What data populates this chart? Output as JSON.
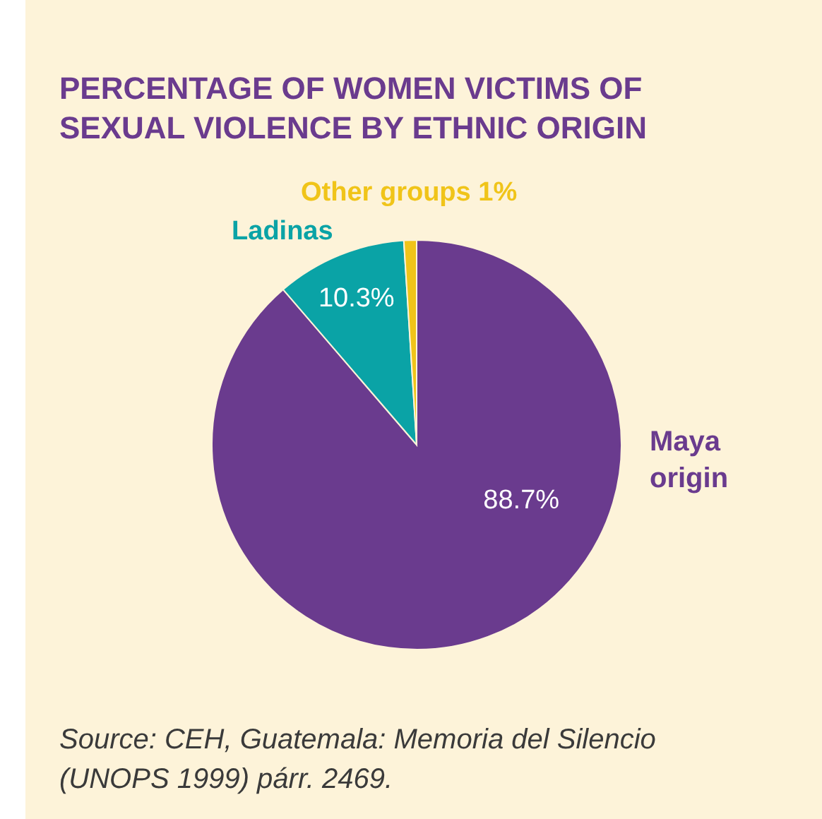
{
  "chart_data": {
    "type": "pie",
    "title": "PERCENTAGE OF WOMEN VICTIMS OF SEXUAL VIOLENCE BY ETHNIC ORIGIN",
    "categories": [
      "Maya origin",
      "Ladinas",
      "Other groups"
    ],
    "values": [
      88.7,
      10.3,
      1
    ],
    "colors": [
      "#6a3b8e",
      "#0aa3a6",
      "#f0c419"
    ],
    "value_labels": [
      "88.7%",
      "10.3%",
      "1%"
    ],
    "annotations": [
      "Source: CEH, Guatemala: Memoria del Silencio (UNOPS 1999) párr. 2469."
    ]
  }
}
